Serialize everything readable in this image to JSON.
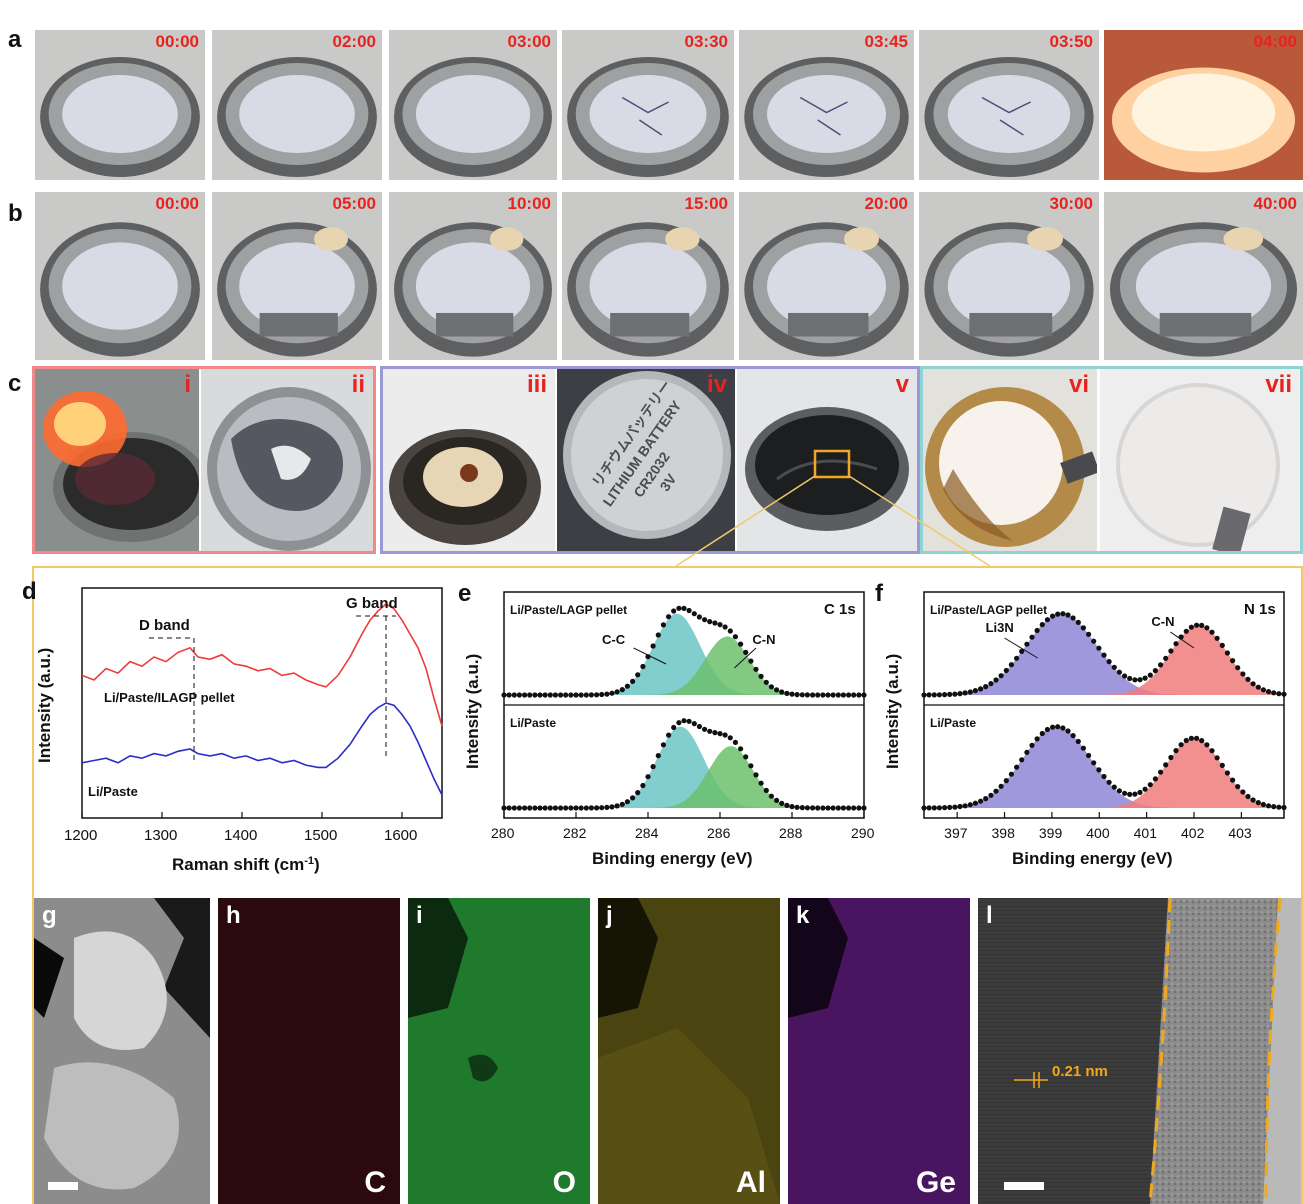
{
  "panels": {
    "a": {
      "label": "a",
      "timestamps": [
        "00:00",
        "02:00",
        "03:00",
        "03:30",
        "03:45",
        "03:50",
        "04:00"
      ]
    },
    "b": {
      "label": "b",
      "timestamps": [
        "00:00",
        "05:00",
        "10:00",
        "15:00",
        "20:00",
        "30:00",
        "40:00"
      ]
    },
    "c": {
      "label": "c",
      "roman": [
        "i",
        "ii",
        "iii",
        "iv",
        "v",
        "vi",
        "vii"
      ],
      "coin_text": [
        "リチウムバッテリー",
        "LITHIUM BATTERY",
        "CR2032",
        "3V"
      ]
    },
    "g": {
      "label": "g"
    },
    "h": {
      "label": "h",
      "element": "C"
    },
    "i": {
      "label": "i",
      "element": "O"
    },
    "j": {
      "label": "j",
      "element": "Al"
    },
    "k": {
      "label": "k",
      "element": "Ge"
    },
    "l": {
      "label": "l",
      "lattice": "0.21 nm"
    }
  },
  "colors": {
    "timestamp": "#e8231f",
    "frame_red": "#f08a8a",
    "frame_purple": "#9b98d8",
    "frame_teal": "#8fd3d3",
    "frame_gold": "#f2c96a",
    "line_red": "#ee3b3b",
    "line_blue": "#2d2dc8",
    "fill_teal": "#6cc4c4",
    "fill_green": "#6cc06c",
    "fill_purple": "#8e86d6",
    "fill_pink": "#f07d7d"
  },
  "chart_data": [
    {
      "panel": "d",
      "type": "line",
      "title": "",
      "xlabel": "Raman shift (cm",
      "xlabel_sup": "-1",
      "xlabel_end": ")",
      "ylabel": "Intensity (a.u.)",
      "xlim": [
        1200,
        1650
      ],
      "xticks": [
        1200,
        1300,
        1400,
        1500,
        1600
      ],
      "annotations": [
        "D band",
        "G band"
      ],
      "band_positions": [
        1340,
        1580
      ],
      "series": [
        {
          "name": "Li/Paste/ILAGP pellet",
          "color": "#ee3b3b",
          "x": [
            1200,
            1215,
            1230,
            1245,
            1260,
            1275,
            1290,
            1305,
            1320,
            1335,
            1345,
            1360,
            1375,
            1390,
            1405,
            1420,
            1435,
            1450,
            1465,
            1480,
            1495,
            1505,
            1520,
            1535,
            1550,
            1560,
            1570,
            1580,
            1590,
            1600,
            1610,
            1620,
            1630,
            1640,
            1650
          ],
          "y": [
            0.62,
            0.6,
            0.65,
            0.63,
            0.68,
            0.66,
            0.7,
            0.68,
            0.72,
            0.74,
            0.7,
            0.69,
            0.71,
            0.67,
            0.66,
            0.64,
            0.65,
            0.62,
            0.63,
            0.6,
            0.58,
            0.57,
            0.62,
            0.7,
            0.8,
            0.86,
            0.9,
            0.93,
            0.91,
            0.86,
            0.8,
            0.74,
            0.65,
            0.52,
            0.4
          ]
        },
        {
          "name": "Li/Paste",
          "color": "#2d2dc8",
          "x": [
            1200,
            1215,
            1230,
            1245,
            1260,
            1275,
            1290,
            1305,
            1320,
            1335,
            1345,
            1360,
            1375,
            1390,
            1405,
            1420,
            1435,
            1450,
            1465,
            1480,
            1495,
            1505,
            1520,
            1535,
            1550,
            1560,
            1570,
            1580,
            1590,
            1600,
            1610,
            1620,
            1630,
            1640,
            1650
          ],
          "y": [
            0.24,
            0.25,
            0.26,
            0.24,
            0.27,
            0.26,
            0.28,
            0.27,
            0.29,
            0.3,
            0.28,
            0.27,
            0.28,
            0.26,
            0.27,
            0.25,
            0.26,
            0.24,
            0.25,
            0.23,
            0.22,
            0.22,
            0.26,
            0.32,
            0.4,
            0.45,
            0.48,
            0.5,
            0.49,
            0.45,
            0.4,
            0.33,
            0.25,
            0.17,
            0.1
          ]
        }
      ]
    },
    {
      "panel": "e",
      "type": "area",
      "title": "C 1s",
      "xlabel": "Binding energy (eV)",
      "ylabel": "Intensity (a.u.)",
      "xlim": [
        280,
        290
      ],
      "xticks": [
        280,
        282,
        284,
        286,
        288,
        290
      ],
      "subplots": [
        {
          "name": "Li/Paste/LAGP pellet",
          "peaks": [
            {
              "label": "C-C",
              "center": 284.8,
              "height": 1.0,
              "width": 0.65,
              "color": "#6cc4c4"
            },
            {
              "label": "C-N",
              "center": 286.2,
              "height": 0.72,
              "width": 0.62,
              "color": "#6cc06c"
            }
          ]
        },
        {
          "name": "Li/Paste",
          "peaks": [
            {
              "label": "C-C",
              "center": 284.9,
              "height": 1.0,
              "width": 0.65,
              "color": "#6cc4c4"
            },
            {
              "label": "C-N",
              "center": 286.3,
              "height": 0.76,
              "width": 0.62,
              "color": "#6cc06c"
            }
          ]
        }
      ]
    },
    {
      "panel": "f",
      "type": "area",
      "title": "N 1s",
      "xlabel": "Binding energy (eV)",
      "ylabel": "Intensity (a.u.)",
      "xlim": [
        396.3,
        403.9
      ],
      "xticks": [
        397,
        398,
        399,
        400,
        401,
        402,
        403
      ],
      "subplots": [
        {
          "name": "Li/Paste/LAGP pellet",
          "peaks": [
            {
              "label": "Li3N",
              "center": 399.2,
              "height": 1.0,
              "width": 0.75,
              "color": "#8e86d6"
            },
            {
              "label": "C-N",
              "center": 402.1,
              "height": 0.86,
              "width": 0.6,
              "color": "#f07d7d"
            }
          ]
        },
        {
          "name": "Li/Paste",
          "peaks": [
            {
              "label": "",
              "center": 399.1,
              "height": 1.0,
              "width": 0.72,
              "color": "#8e86d6"
            },
            {
              "label": "",
              "center": 402.0,
              "height": 0.86,
              "width": 0.6,
              "color": "#f07d7d"
            }
          ]
        }
      ]
    }
  ]
}
